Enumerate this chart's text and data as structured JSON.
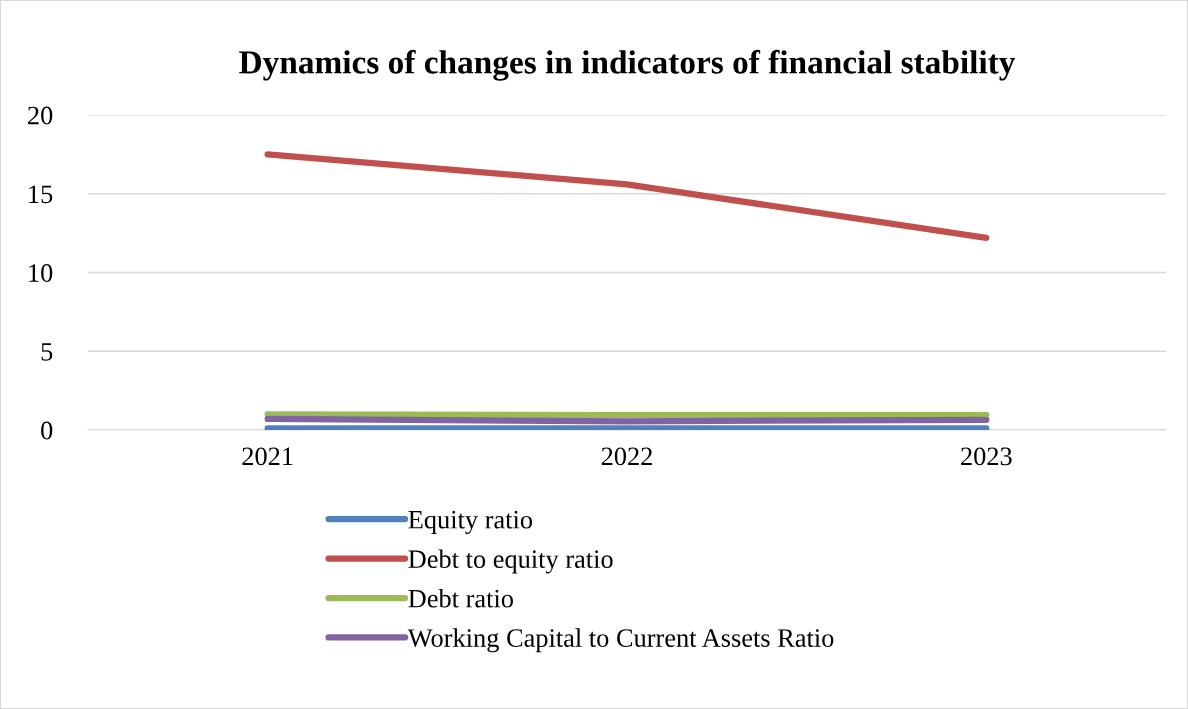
{
  "chart_data": {
    "type": "line",
    "title": "Dynamics of changes in indicators of financial stability",
    "categories": [
      "2021",
      "2022",
      "2023"
    ],
    "series": [
      {
        "name": "Equity ratio",
        "color": "#4f81bd",
        "values": [
          0.1,
          0.1,
          0.1
        ]
      },
      {
        "name": "Debt to equity ratio",
        "color": "#c0504d",
        "values": [
          17.5,
          15.6,
          12.2
        ]
      },
      {
        "name": "Debt ratio",
        "color": "#9bbb59",
        "values": [
          1.0,
          0.95,
          0.95
        ]
      },
      {
        "name": "Working Capital to Current Assets Ratio",
        "color": "#8064a2",
        "values": [
          0.7,
          0.55,
          0.65
        ]
      }
    ],
    "ylim": [
      0,
      20
    ],
    "yticks": [
      0,
      5,
      10,
      15,
      20
    ],
    "grid": "y",
    "legend": "bottom",
    "marker": "none",
    "line_style": "solid"
  }
}
